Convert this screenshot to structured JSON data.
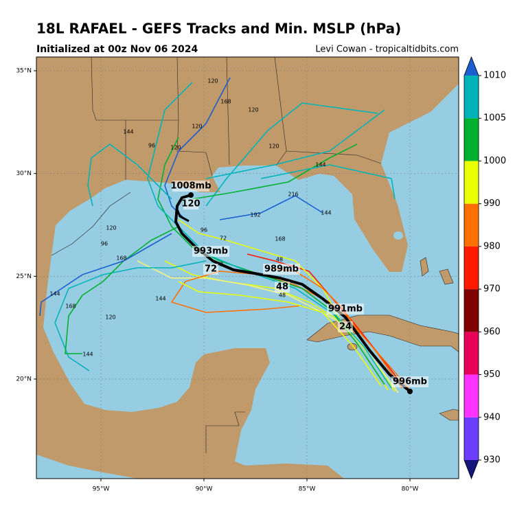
{
  "header": {
    "title": "18L RAFAEL - GEFS Tracks and Min. MSLP (hPa)",
    "subtitle": "Initialized at 00z Nov 06 2024",
    "credit": "Levi Cowan - tropicaltidbits.com"
  },
  "map": {
    "lat_ticks": [
      {
        "value": 35,
        "label": "35°N"
      },
      {
        "value": 30,
        "label": "30°N"
      },
      {
        "value": 25,
        "label": "25°N"
      },
      {
        "value": 20,
        "label": "20°N"
      }
    ],
    "lon_ticks": [
      {
        "value": -95,
        "label": "95°W"
      },
      {
        "value": -90,
        "label": "90°W"
      },
      {
        "value": -85,
        "label": "85°W"
      },
      {
        "value": -80,
        "label": "80°W"
      }
    ]
  },
  "colorbar": {
    "ticks": [
      930,
      940,
      950,
      960,
      970,
      980,
      990,
      1000,
      1005,
      1010
    ],
    "colors": [
      "#6a3dff",
      "#ff33ff",
      "#e6005a",
      "#7f0000",
      "#ff1a00",
      "#ff7000",
      "#eaff00",
      "#00b02f",
      "#00b3b8"
    ],
    "under_color": "#16167a",
    "over_color": "#1a5ed0"
  },
  "mean_track": {
    "labels": [
      "996mb",
      "991mb",
      "24",
      "989mb",
      "48",
      "993mb",
      "72",
      "1008mb",
      "120"
    ]
  },
  "member_labels": [
    "120",
    "168",
    "120",
    "144",
    "96",
    "120",
    "120",
    "120",
    "144",
    "216",
    "192",
    "144",
    "168",
    "120",
    "144",
    "168",
    "120",
    "144",
    "96",
    "168",
    "48",
    "48",
    "72",
    "72",
    "96",
    "144"
  ]
}
